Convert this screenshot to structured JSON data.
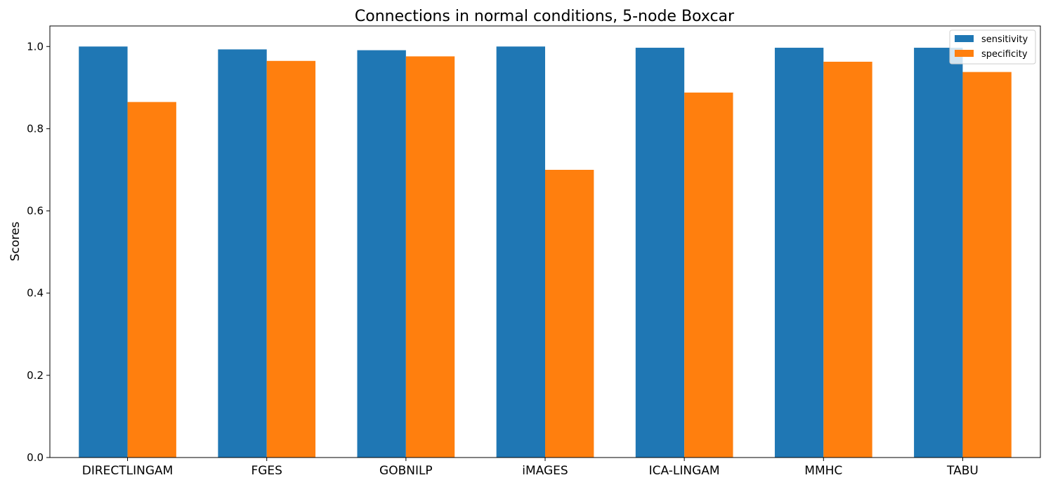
{
  "chart_data": {
    "type": "bar",
    "title": "Connections in normal conditions, 5-node Boxcar",
    "xlabel": "",
    "ylabel": "Scores",
    "categories": [
      "DIRECTLINGAM",
      "FGES",
      "GOBNILP",
      "iMAGES",
      "ICA-LINGAM",
      "MMHC",
      "TABU"
    ],
    "series": [
      {
        "name": "sensitivity",
        "color": "#1f77b4",
        "values": [
          1.0,
          0.993,
          0.991,
          1.0,
          0.997,
          0.997,
          0.997
        ]
      },
      {
        "name": "specificity",
        "color": "#ff7f0e",
        "values": [
          0.865,
          0.965,
          0.976,
          0.7,
          0.888,
          0.963,
          0.938
        ]
      }
    ],
    "ylim": [
      0,
      1.05
    ],
    "yticks": [
      "0.0",
      "0.2",
      "0.4",
      "0.6",
      "0.8",
      "1.0"
    ],
    "grid": false,
    "legend_position": "top-right"
  }
}
